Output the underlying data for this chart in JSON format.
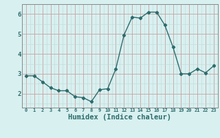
{
  "x": [
    0,
    1,
    2,
    3,
    4,
    5,
    6,
    7,
    8,
    9,
    10,
    11,
    12,
    13,
    14,
    15,
    16,
    17,
    18,
    19,
    20,
    21,
    22,
    23
  ],
  "y": [
    2.9,
    2.9,
    2.6,
    2.3,
    2.15,
    2.15,
    1.85,
    1.8,
    1.6,
    2.2,
    2.25,
    3.25,
    4.95,
    5.85,
    5.8,
    6.1,
    6.1,
    5.45,
    4.35,
    3.0,
    3.0,
    3.25,
    3.05,
    3.4
  ],
  "line_color": "#2d6b6b",
  "marker": "D",
  "marker_size": 2.2,
  "linewidth": 1.0,
  "xlabel": "Humidex (Indice chaleur)",
  "xlabel_fontsize": 7.5,
  "xlabel_fontweight": "bold",
  "background_color": "#d8f0f0",
  "grid_color_major": "#c8a0a0",
  "grid_color_minor": "#c0d8d8",
  "tick_label_color": "#2d6b6b",
  "xlim": [
    -0.5,
    23.5
  ],
  "ylim": [
    1.3,
    6.5
  ],
  "yticks": [
    2,
    3,
    4,
    5,
    6
  ],
  "xticks": [
    0,
    1,
    2,
    3,
    4,
    5,
    6,
    7,
    8,
    9,
    10,
    11,
    12,
    13,
    14,
    15,
    16,
    17,
    18,
    19,
    20,
    21,
    22,
    23
  ]
}
